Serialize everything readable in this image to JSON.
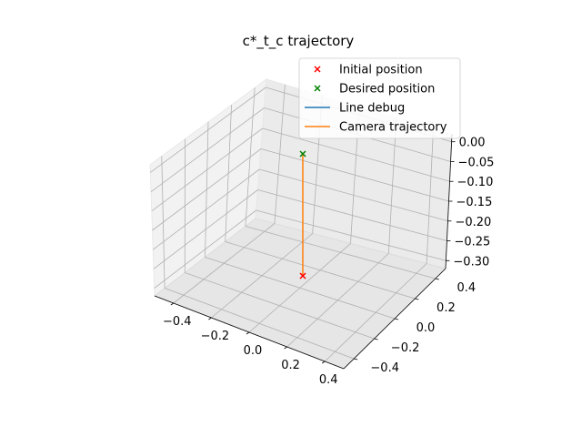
{
  "chart_data": {
    "type": "scatter3d",
    "title": "c*_t_c trajectory",
    "xlabel": "",
    "ylabel": "",
    "zlabel": "",
    "xlim": [
      -0.5,
      0.5
    ],
    "ylim": [
      -0.5,
      0.5
    ],
    "zlim": [
      -0.32,
      0.02
    ],
    "grid": true,
    "legend_position": "top-right",
    "x_ticks": [
      "−0.4",
      "−0.2",
      "0.0",
      "0.2",
      "0.4"
    ],
    "y_ticks": [
      "−0.4",
      "−0.2",
      "0.0",
      "0.2",
      "0.4"
    ],
    "z_ticks": [
      "0.00",
      "−0.05",
      "−0.10",
      "−0.15",
      "−0.20",
      "−0.25",
      "−0.30"
    ],
    "legend": [
      {
        "label": "Initial position",
        "kind": "marker",
        "color": "#ff0000"
      },
      {
        "label": "Desired position",
        "kind": "marker",
        "color": "#008000"
      },
      {
        "label": "Line debug",
        "kind": "line",
        "color": "#1f77b4"
      },
      {
        "label": "Camera trajectory",
        "kind": "line",
        "color": "#ff7f0e"
      }
    ],
    "series": [
      {
        "name": "Initial position",
        "points": [
          {
            "x": 0.0,
            "y": 0.0,
            "z": -0.3
          }
        ]
      },
      {
        "name": "Desired position",
        "points": [
          {
            "x": 0.0,
            "y": 0.0,
            "z": -0.04
          }
        ]
      },
      {
        "name": "Camera trajectory",
        "points": [
          {
            "x": 0.0,
            "y": 0.0,
            "z": -0.3
          },
          {
            "x": 0.0,
            "y": 0.0,
            "z": -0.04
          }
        ]
      }
    ]
  }
}
